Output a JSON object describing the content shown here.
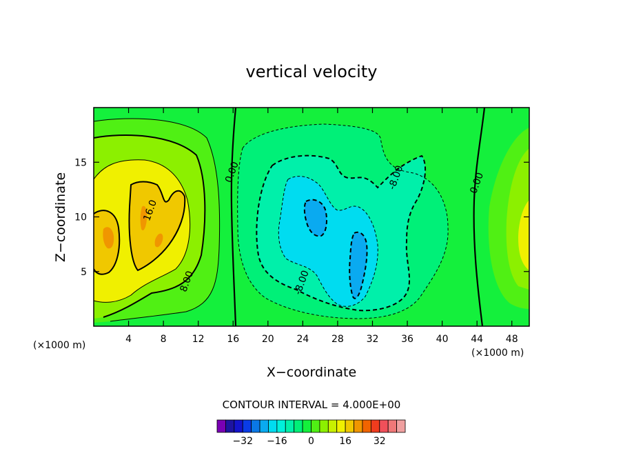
{
  "chart_data": {
    "type": "contour",
    "title": "vertical velocity",
    "xlabel": "X−coordinate",
    "ylabel": "Z−coordinate",
    "x_unit": "(×1000 m)",
    "y_unit": "(×1000 m)",
    "xlim": [
      0,
      50
    ],
    "ylim": [
      0,
      20
    ],
    "xticks": [
      4,
      8,
      12,
      16,
      20,
      24,
      28,
      32,
      36,
      40,
      44,
      48
    ],
    "xtick_labels": [
      "4",
      "8",
      "12",
      "16",
      "20",
      "24",
      "28",
      "32",
      "36",
      "40",
      "44",
      "48"
    ],
    "yticks": [
      5,
      10,
      15
    ],
    "ytick_labels": [
      "5",
      "10",
      "15"
    ],
    "contour_interval_text": "CONTOUR INTERVAL = 4.000E+00",
    "contour_labels": [
      {
        "text": "0.00",
        "x": 16.2,
        "z": 14.0
      },
      {
        "text": "0.00",
        "x": 44.3,
        "z": 13.0
      },
      {
        "text": "16.0",
        "x": 6.8,
        "z": 10.5
      },
      {
        "text": "8.00",
        "x": 11.0,
        "z": 4.0
      },
      {
        "text": "-8.00",
        "x": 24.2,
        "z": 3.9
      },
      {
        "text": "-8.00",
        "x": 35.0,
        "z": 13.5
      }
    ],
    "colorbar": {
      "levels": [
        -36,
        -32,
        -28,
        -24,
        -20,
        -16,
        -12,
        -8,
        -4,
        0,
        4,
        8,
        12,
        16,
        20,
        24,
        28,
        32,
        36
      ],
      "tick_values": [
        -32,
        -16,
        0,
        16,
        32
      ],
      "tick_labels": [
        "−32",
        "−16",
        "0",
        "16",
        "32"
      ],
      "colors": [
        "#7a00b4",
        "#1e14a0",
        "#1414cc",
        "#0a3ce6",
        "#0a78e6",
        "#0aaaf0",
        "#00dcf0",
        "#00f0dc",
        "#00f0aa",
        "#00f078",
        "#14f03c",
        "#50f014",
        "#8cf000",
        "#c8f000",
        "#f0f000",
        "#f0c800",
        "#f09600",
        "#f06400",
        "#f03c1e",
        "#f0505a",
        "#f07878",
        "#f0a0a0"
      ]
    }
  }
}
